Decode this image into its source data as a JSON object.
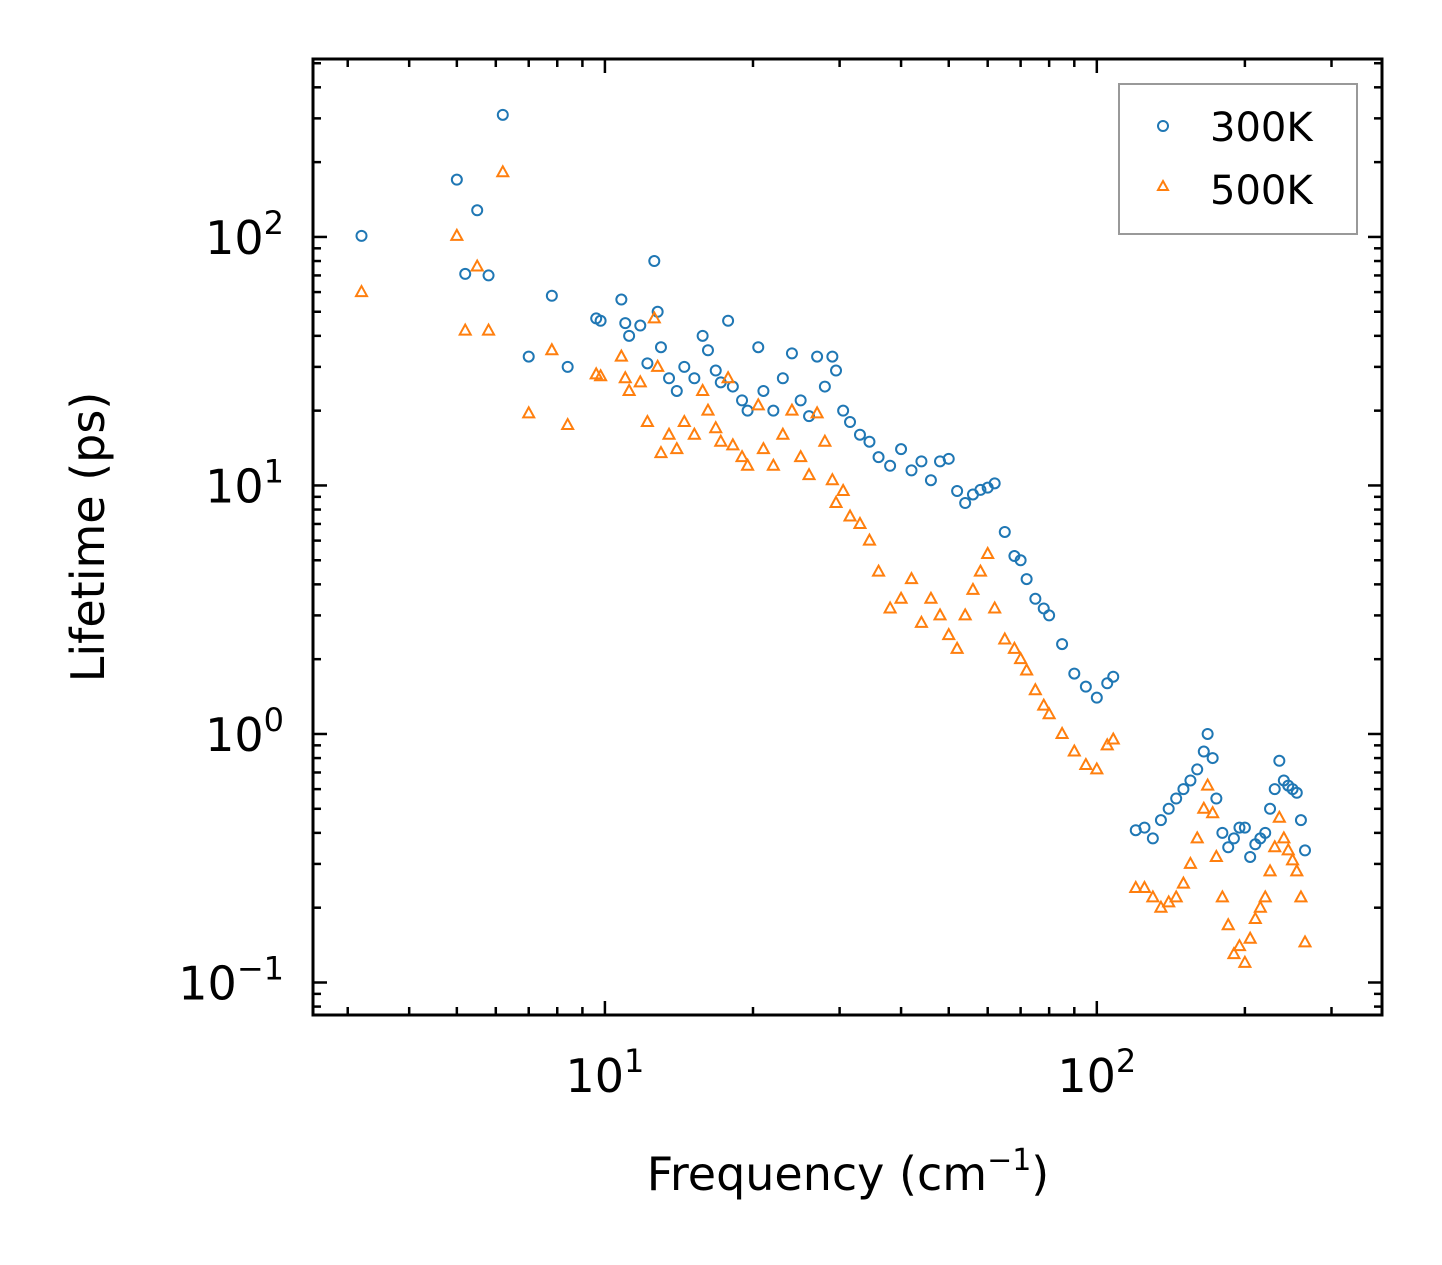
{
  "chart_data": {
    "type": "scatter",
    "title": "",
    "xlabel": "Frequency (cm",
    "xlabel_sup": "−1",
    "xlabel_close": ")",
    "ylabel": "Lifetime (ps)",
    "xscale": "log",
    "yscale": "log",
    "xlim": [
      2.55,
      380
    ],
    "ylim": [
      0.074,
      520
    ],
    "x_ticks": [
      {
        "value": 10,
        "base": "10",
        "exp": "1"
      },
      {
        "value": 100,
        "base": "10",
        "exp": "2"
      }
    ],
    "y_ticks": [
      {
        "value": 0.1,
        "base": "10",
        "exp": "−1"
      },
      {
        "value": 1,
        "base": "10",
        "exp": "0"
      },
      {
        "value": 10,
        "base": "10",
        "exp": "1"
      },
      {
        "value": 100,
        "base": "10",
        "exp": "2"
      }
    ],
    "legend_position": "top-right",
    "series": [
      {
        "name": "300K",
        "marker": "circle",
        "color": "#1f77b4",
        "points": [
          [
            3.2,
            101
          ],
          [
            5.0,
            170
          ],
          [
            5.2,
            71
          ],
          [
            5.5,
            128
          ],
          [
            5.8,
            70
          ],
          [
            6.2,
            310
          ],
          [
            7.0,
            33
          ],
          [
            7.8,
            58
          ],
          [
            8.4,
            30
          ],
          [
            9.6,
            47
          ],
          [
            9.8,
            46
          ],
          [
            10.8,
            56
          ],
          [
            11.0,
            45
          ],
          [
            11.2,
            40
          ],
          [
            11.8,
            44
          ],
          [
            12.2,
            31
          ],
          [
            12.6,
            80
          ],
          [
            12.8,
            50
          ],
          [
            13.0,
            36
          ],
          [
            13.5,
            27
          ],
          [
            14.0,
            24
          ],
          [
            14.5,
            30
          ],
          [
            15.2,
            27
          ],
          [
            15.8,
            40
          ],
          [
            16.2,
            35
          ],
          [
            16.8,
            29
          ],
          [
            17.2,
            26
          ],
          [
            17.8,
            46
          ],
          [
            18.2,
            25
          ],
          [
            19.0,
            22
          ],
          [
            19.5,
            20
          ],
          [
            20.5,
            36
          ],
          [
            21.0,
            24
          ],
          [
            22.0,
            20
          ],
          [
            23.0,
            27
          ],
          [
            24.0,
            34
          ],
          [
            25.0,
            22
          ],
          [
            26.0,
            19
          ],
          [
            27.0,
            33
          ],
          [
            28.0,
            25
          ],
          [
            29.0,
            33
          ],
          [
            29.5,
            29
          ],
          [
            30.5,
            20
          ],
          [
            31.5,
            18
          ],
          [
            33.0,
            16
          ],
          [
            34.5,
            15
          ],
          [
            36.0,
            13
          ],
          [
            38.0,
            12
          ],
          [
            40.0,
            14
          ],
          [
            42.0,
            11.5
          ],
          [
            44.0,
            12.5
          ],
          [
            46.0,
            10.5
          ],
          [
            48.0,
            12.5
          ],
          [
            50.0,
            12.8
          ],
          [
            52.0,
            9.5
          ],
          [
            54.0,
            8.5
          ],
          [
            56.0,
            9.2
          ],
          [
            58.0,
            9.6
          ],
          [
            60.0,
            9.8
          ],
          [
            62.0,
            10.2
          ],
          [
            65.0,
            6.5
          ],
          [
            68.0,
            5.2
          ],
          [
            70.0,
            5.0
          ],
          [
            72.0,
            4.2
          ],
          [
            75.0,
            3.5
          ],
          [
            78.0,
            3.2
          ],
          [
            80.0,
            3.0
          ],
          [
            85.0,
            2.3
          ],
          [
            90.0,
            1.75
          ],
          [
            95.0,
            1.55
          ],
          [
            100.0,
            1.4
          ],
          [
            105.0,
            1.6
          ],
          [
            108.0,
            1.7
          ],
          [
            120.0,
            0.41
          ],
          [
            125.0,
            0.42
          ],
          [
            130.0,
            0.38
          ],
          [
            135.0,
            0.45
          ],
          [
            140.0,
            0.5
          ],
          [
            145.0,
            0.55
          ],
          [
            150.0,
            0.6
          ],
          [
            155.0,
            0.65
          ],
          [
            160.0,
            0.72
          ],
          [
            165.0,
            0.85
          ],
          [
            168.0,
            1.0
          ],
          [
            172.0,
            0.8
          ],
          [
            175.0,
            0.55
          ],
          [
            180.0,
            0.4
          ],
          [
            185.0,
            0.35
          ],
          [
            190.0,
            0.38
          ],
          [
            195.0,
            0.42
          ],
          [
            200.0,
            0.42
          ],
          [
            205.0,
            0.32
          ],
          [
            210.0,
            0.36
          ],
          [
            215.0,
            0.38
          ],
          [
            220.0,
            0.4
          ],
          [
            225.0,
            0.5
          ],
          [
            230.0,
            0.6
          ],
          [
            235.0,
            0.78
          ],
          [
            240.0,
            0.65
          ],
          [
            245.0,
            0.62
          ],
          [
            250.0,
            0.6
          ],
          [
            255.0,
            0.58
          ],
          [
            260.0,
            0.45
          ],
          [
            265.0,
            0.34
          ]
        ]
      },
      {
        "name": "500K",
        "marker": "triangle",
        "color": "#ff7f0e",
        "points": [
          [
            3.2,
            60
          ],
          [
            5.0,
            101
          ],
          [
            5.2,
            42
          ],
          [
            5.5,
            76
          ],
          [
            5.8,
            42
          ],
          [
            6.2,
            182
          ],
          [
            7.0,
            19.5
          ],
          [
            7.8,
            35
          ],
          [
            8.4,
            17.5
          ],
          [
            9.6,
            28
          ],
          [
            9.8,
            27.5
          ],
          [
            10.8,
            33
          ],
          [
            11.0,
            27
          ],
          [
            11.2,
            24
          ],
          [
            11.8,
            26
          ],
          [
            12.2,
            18
          ],
          [
            12.6,
            47
          ],
          [
            12.8,
            30
          ],
          [
            13.0,
            13.5
          ],
          [
            13.5,
            16
          ],
          [
            14.0,
            14
          ],
          [
            14.5,
            18
          ],
          [
            15.2,
            16
          ],
          [
            15.8,
            24
          ],
          [
            16.2,
            20
          ],
          [
            16.8,
            17
          ],
          [
            17.2,
            15
          ],
          [
            17.8,
            27
          ],
          [
            18.2,
            14.5
          ],
          [
            19.0,
            13
          ],
          [
            19.5,
            12
          ],
          [
            20.5,
            21
          ],
          [
            21.0,
            14
          ],
          [
            22.0,
            12
          ],
          [
            23.0,
            16
          ],
          [
            24.0,
            20
          ],
          [
            25.0,
            13
          ],
          [
            26.0,
            11
          ],
          [
            27.0,
            19.5
          ],
          [
            28.0,
            15
          ],
          [
            29.0,
            10.5
          ],
          [
            29.5,
            8.5
          ],
          [
            30.5,
            9.5
          ],
          [
            31.5,
            7.5
          ],
          [
            33.0,
            7.0
          ],
          [
            34.5,
            6.0
          ],
          [
            36.0,
            4.5
          ],
          [
            38.0,
            3.2
          ],
          [
            40.0,
            3.5
          ],
          [
            42.0,
            4.2
          ],
          [
            44.0,
            2.8
          ],
          [
            46.0,
            3.5
          ],
          [
            48.0,
            3.0
          ],
          [
            50.0,
            2.5
          ],
          [
            52.0,
            2.2
          ],
          [
            54.0,
            3.0
          ],
          [
            56.0,
            3.8
          ],
          [
            58.0,
            4.5
          ],
          [
            60.0,
            5.3
          ],
          [
            62.0,
            3.2
          ],
          [
            65.0,
            2.4
          ],
          [
            68.0,
            2.2
          ],
          [
            70.0,
            2.0
          ],
          [
            72.0,
            1.8
          ],
          [
            75.0,
            1.5
          ],
          [
            78.0,
            1.3
          ],
          [
            80.0,
            1.2
          ],
          [
            85.0,
            1.0
          ],
          [
            90.0,
            0.85
          ],
          [
            95.0,
            0.75
          ],
          [
            100.0,
            0.72
          ],
          [
            105.0,
            0.9
          ],
          [
            108.0,
            0.95
          ],
          [
            120.0,
            0.24
          ],
          [
            125.0,
            0.24
          ],
          [
            130.0,
            0.22
          ],
          [
            135.0,
            0.2
          ],
          [
            140.0,
            0.21
          ],
          [
            145.0,
            0.22
          ],
          [
            150.0,
            0.25
          ],
          [
            155.0,
            0.3
          ],
          [
            160.0,
            0.38
          ],
          [
            165.0,
            0.5
          ],
          [
            168.0,
            0.62
          ],
          [
            172.0,
            0.48
          ],
          [
            175.0,
            0.32
          ],
          [
            180.0,
            0.22
          ],
          [
            185.0,
            0.17
          ],
          [
            190.0,
            0.13
          ],
          [
            195.0,
            0.14
          ],
          [
            200.0,
            0.12
          ],
          [
            205.0,
            0.15
          ],
          [
            210.0,
            0.18
          ],
          [
            215.0,
            0.2
          ],
          [
            220.0,
            0.22
          ],
          [
            225.0,
            0.28
          ],
          [
            230.0,
            0.35
          ],
          [
            235.0,
            0.46
          ],
          [
            240.0,
            0.38
          ],
          [
            245.0,
            0.34
          ],
          [
            250.0,
            0.31
          ],
          [
            255.0,
            0.28
          ],
          [
            260.0,
            0.22
          ],
          [
            265.0,
            0.145
          ]
        ]
      }
    ]
  }
}
